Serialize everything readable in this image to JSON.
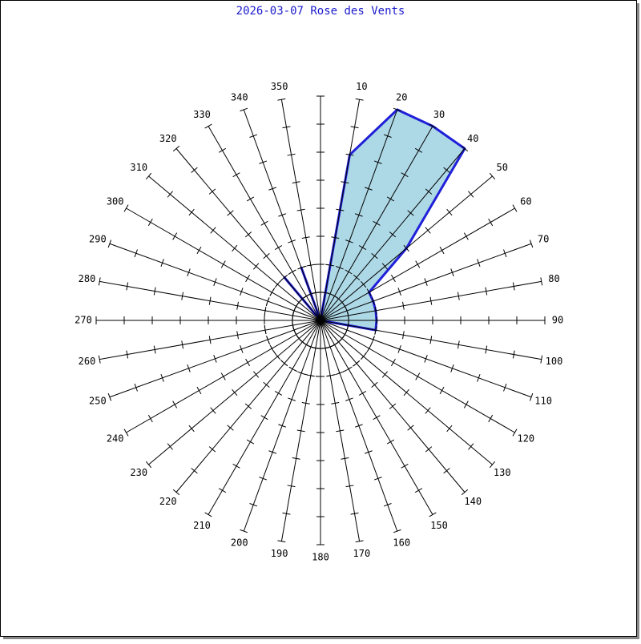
{
  "chart_data": {
    "type": "polar_area",
    "title": "2026-03-07 Rose des Vents",
    "categories": [
      null,
      10,
      20,
      30,
      40,
      50,
      60,
      70,
      80,
      90,
      100,
      110,
      120,
      130,
      140,
      150,
      160,
      170,
      180,
      190,
      200,
      210,
      220,
      230,
      240,
      250,
      260,
      270,
      280,
      290,
      300,
      310,
      320,
      330,
      340,
      350
    ],
    "series": [
      {
        "color": "#2020d8",
        "fill": "#add8e6",
        "values": [
          0,
          6,
          8,
          8,
          8,
          4,
          2,
          2,
          2,
          2,
          2,
          0,
          0,
          0,
          0,
          0,
          0,
          0,
          0,
          0,
          0,
          0,
          0,
          0,
          0,
          0,
          0,
          0,
          0,
          0,
          0,
          0,
          2,
          0,
          2,
          0
        ]
      }
    ],
    "rlim": [
      0,
      8
    ],
    "rticks": [
      1,
      2,
      3,
      4,
      5,
      6,
      7,
      8
    ],
    "circles": [
      {
        "value": 1,
        "style": "solid"
      },
      {
        "value": 2,
        "style": "dashed"
      }
    ]
  }
}
